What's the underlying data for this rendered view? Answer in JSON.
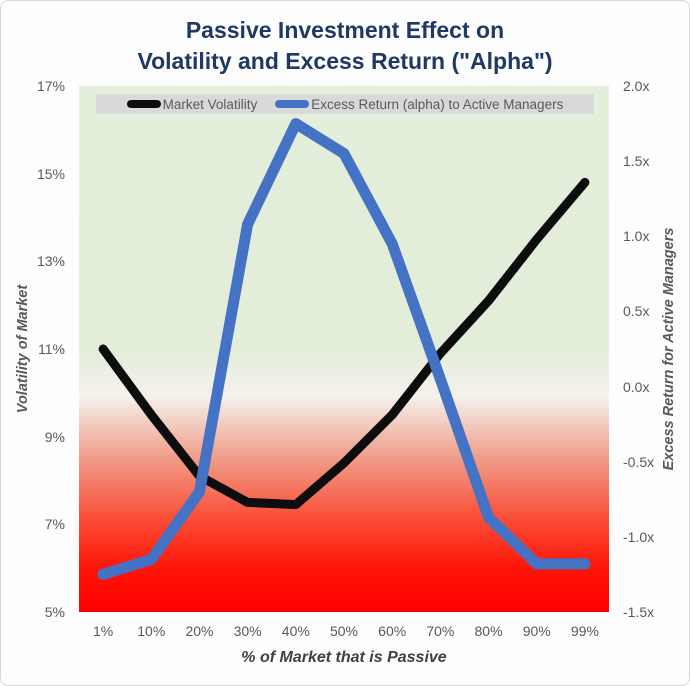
{
  "title": {
    "line1": "Passive Investment Effect on",
    "line2": "Volatility and Excess Return (\"Alpha\")"
  },
  "legend": {
    "items": [
      {
        "label": "Market Volatility",
        "color": "#0d0d0d"
      },
      {
        "label": "Excess Return (alpha) to Active Managers",
        "color": "#4472c4"
      }
    ]
  },
  "chart_data": {
    "type": "line",
    "categories": [
      "1%",
      "10%",
      "20%",
      "30%",
      "40%",
      "50%",
      "60%",
      "70%",
      "80%",
      "90%",
      "99%"
    ],
    "series": [
      {
        "name": "Market Volatility",
        "axis": "left",
        "color": "#0d0d0d",
        "values": [
          11.0,
          9.5,
          8.1,
          7.5,
          7.45,
          8.4,
          9.5,
          10.9,
          12.1,
          13.5,
          14.8
        ]
      },
      {
        "name": "Excess Return (alpha) to Active Managers",
        "axis": "right",
        "color": "#4472c4",
        "values": [
          -1.25,
          -1.15,
          -0.7,
          1.08,
          1.75,
          1.55,
          0.95,
          0.05,
          -0.87,
          -1.18,
          -1.18
        ]
      }
    ],
    "left_axis": {
      "title": "Volatility of Market",
      "ticks": [
        "17%",
        "15%",
        "13%",
        "11%",
        "9%",
        "7%",
        "5%"
      ],
      "min": 5,
      "max": 17,
      "unit": "%"
    },
    "right_axis": {
      "title": "Excess Return for Active Managers",
      "ticks": [
        "2.0x",
        "1.5x",
        "1.0x",
        "0.5x",
        "0.0x",
        "-0.5x",
        "-1.0x",
        "-1.5x"
      ],
      "min": -1.5,
      "max": 2.0,
      "unit": "x"
    },
    "x_axis": {
      "title": "% of Market that is Passive"
    },
    "layout_hints": {
      "gridlines": false,
      "legend_position": "top-inside",
      "plot_background": "vertical gradient green (top) to white to red (bottom)",
      "background_colors": {
        "top": "#e3eedb",
        "middle": "#f5f1ec",
        "bottom": "#ff0000"
      }
    }
  }
}
